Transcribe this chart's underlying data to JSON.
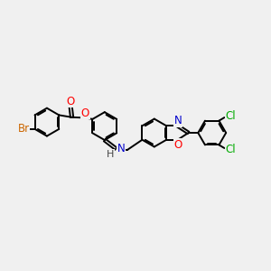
{
  "bg_color": "#f0f0f0",
  "bond_color": "#000000",
  "bond_width": 1.4,
  "dbo": 0.055,
  "atom_colors": {
    "Br": "#cc6600",
    "O": "#ff0000",
    "N": "#0000cc",
    "Cl": "#00aa00",
    "H": "#444444",
    "C": "#000000"
  },
  "font_size": 8.5,
  "fig_width": 3.0,
  "fig_height": 3.0,
  "dpi": 100
}
